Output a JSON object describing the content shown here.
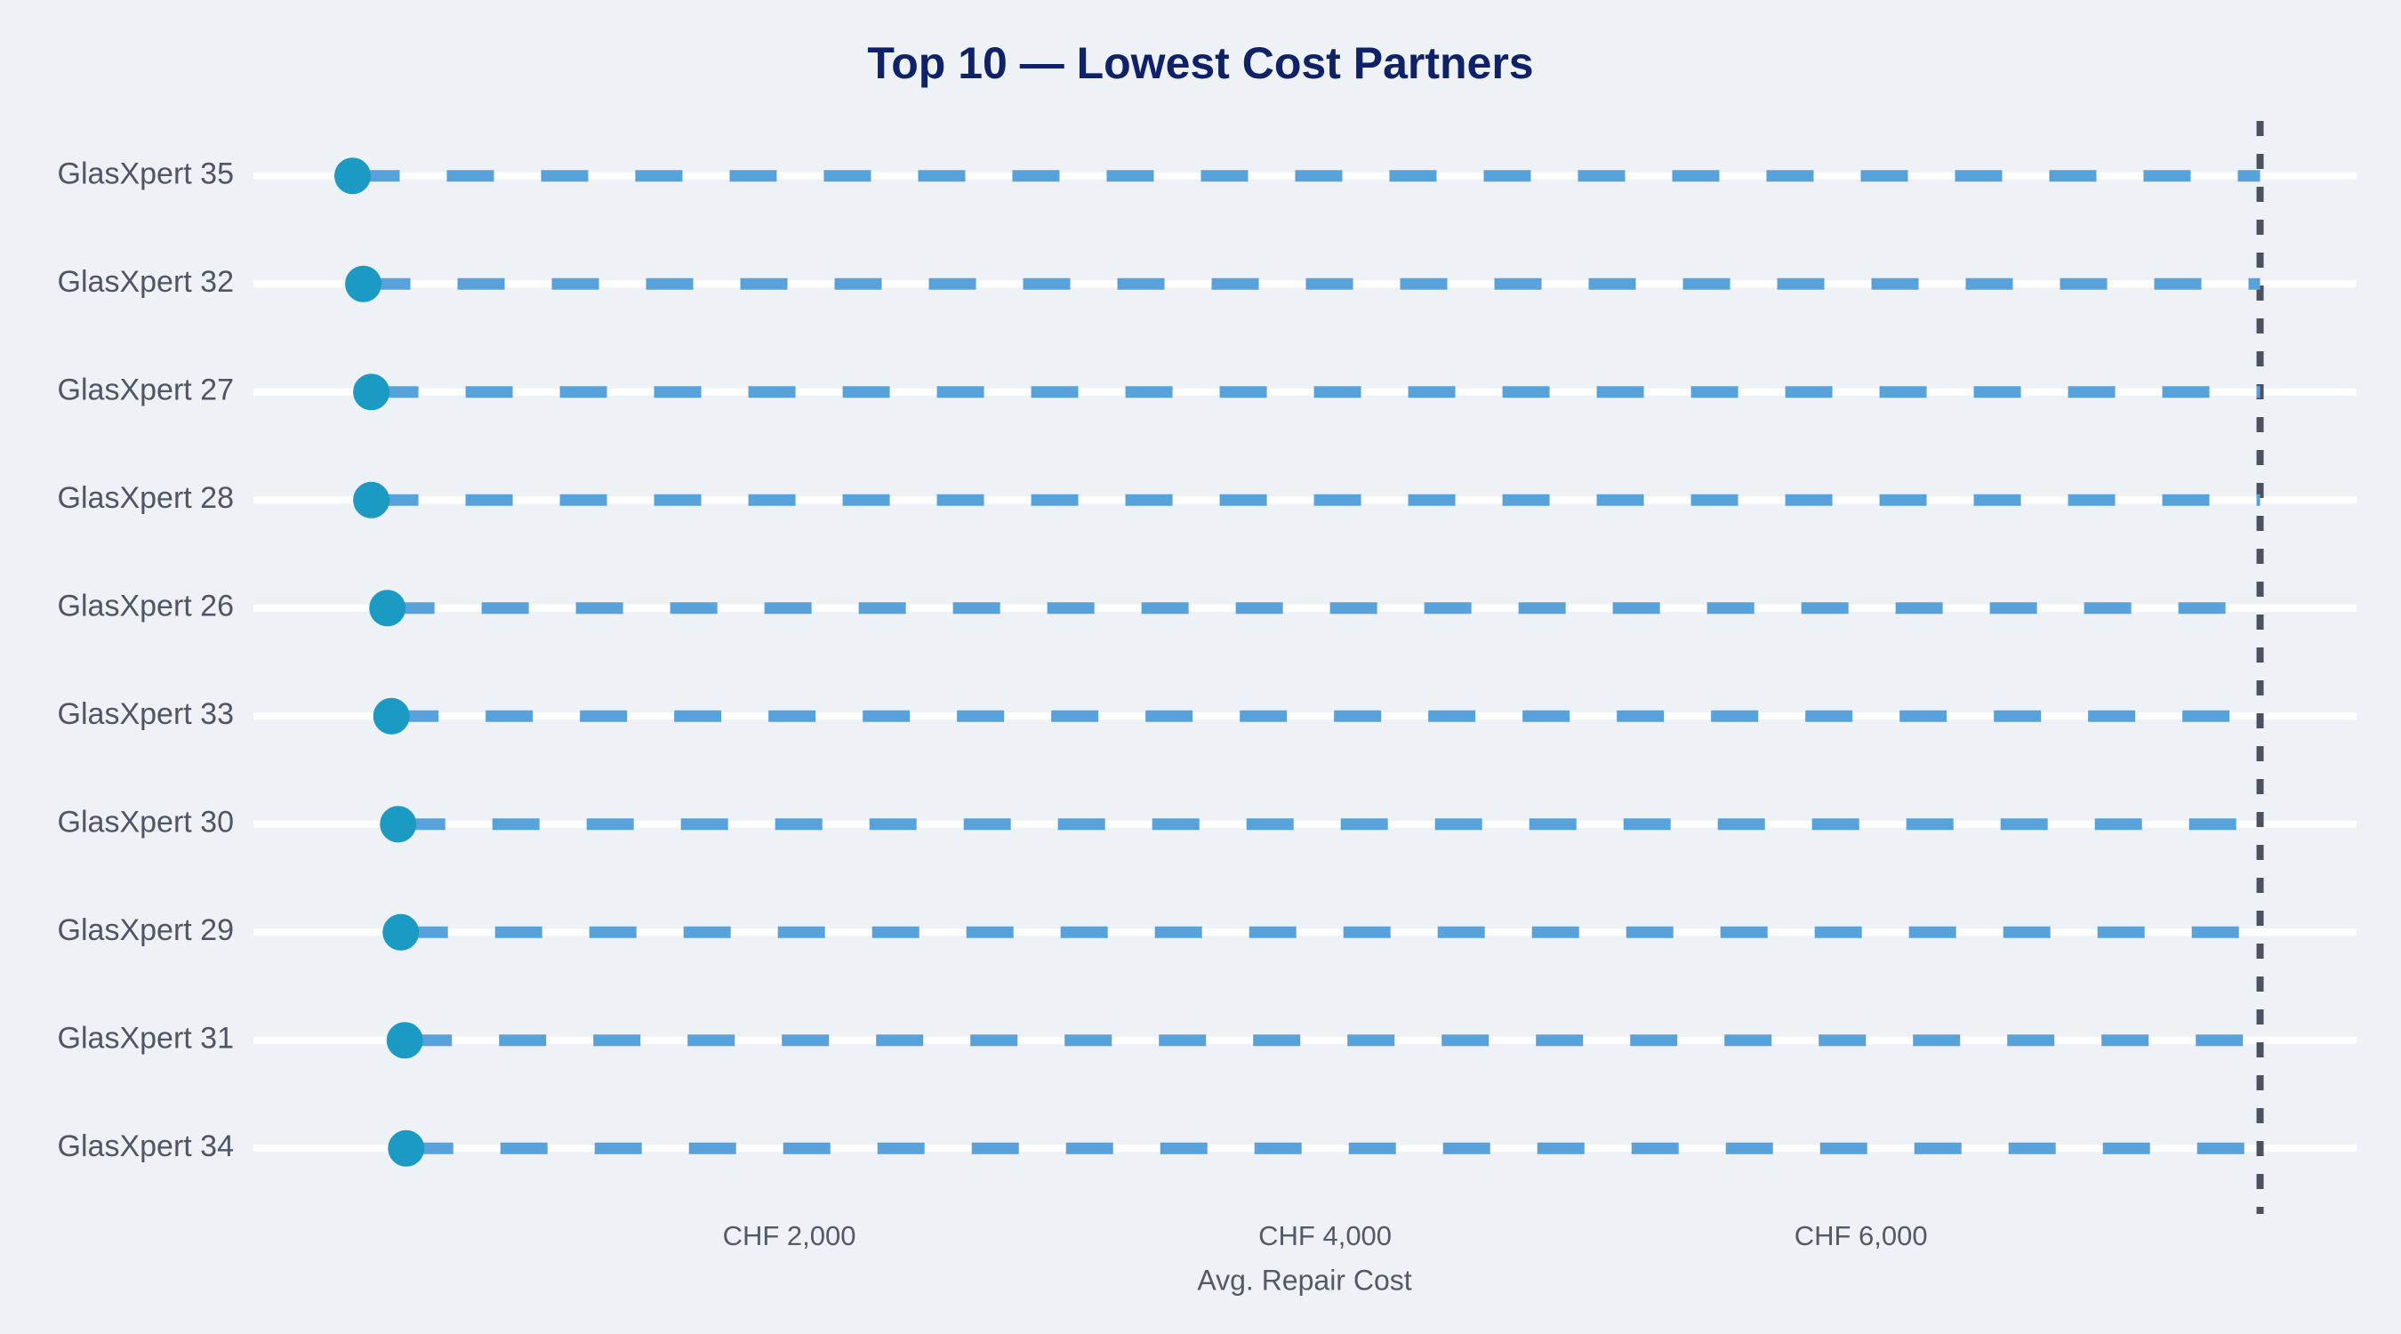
{
  "chart_data": {
    "type": "scatter",
    "variant": "lollipop-dot-plot",
    "title": "Top 10 — Lowest Cost Partners",
    "xlabel": "Avg. Repair Cost",
    "ylabel": "",
    "currency": "CHF",
    "categories": [
      "GlasXpert 35",
      "GlasXpert 32",
      "GlasXpert 27",
      "GlasXpert 28",
      "GlasXpert 26",
      "GlasXpert 33",
      "GlasXpert 30",
      "GlasXpert 29",
      "GlasXpert 31",
      "GlasXpert 34"
    ],
    "values": [
      370,
      410,
      440,
      440,
      500,
      515,
      540,
      550,
      565,
      570
    ],
    "xlim": [
      0,
      7850
    ],
    "xticks": {
      "values": [
        2000,
        4000,
        6000
      ],
      "labels": [
        "CHF 2,000",
        "CHF 4,000",
        "CHF 6,000"
      ]
    },
    "reference_line": {
      "value": 7490,
      "style": "dashed"
    },
    "grid": "horizontal-white-rows",
    "legend_position": "none",
    "colors": {
      "background": "#eef1f6",
      "dot": "#1b9ac3",
      "stem": "#58a2dc",
      "gridline": "#ffffff",
      "reference_line": "#4a5160",
      "title": "#0f2267",
      "axis_text": "#525a68"
    }
  }
}
